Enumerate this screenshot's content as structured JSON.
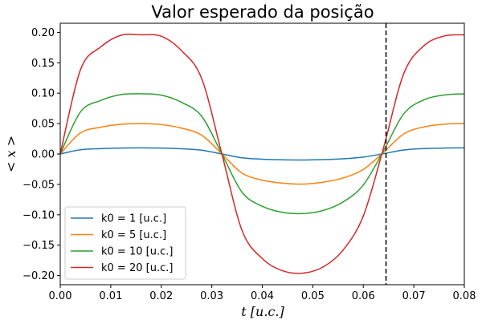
{
  "chart_data": {
    "type": "line",
    "title": "Valor esperado da posição",
    "xlabel": "t [u.c.]",
    "ylabel": "< x >",
    "xlim": [
      0.0,
      0.08
    ],
    "ylim": [
      -0.215,
      0.215
    ],
    "xticks": [
      0.0,
      0.01,
      0.02,
      0.03,
      0.04,
      0.05,
      0.06,
      0.07,
      0.08
    ],
    "xtick_labels": [
      "0.00",
      "0.01",
      "0.02",
      "0.03",
      "0.04",
      "0.05",
      "0.06",
      "0.07",
      "0.08"
    ],
    "yticks": [
      0.2,
      0.15,
      0.1,
      0.05,
      0.0,
      -0.05,
      -0.1,
      -0.15,
      -0.2
    ],
    "ytick_labels": [
      "0.20",
      "0.15",
      "0.10",
      "0.05",
      "0.00",
      "−0.05",
      "−0.10",
      "−0.15",
      "−0.20"
    ],
    "grid": false,
    "legend_position": "lower-left",
    "vline": {
      "x": 0.0645,
      "style": "dashed",
      "color": "#000000"
    },
    "x": [
      0.0,
      0.004,
      0.008,
      0.012,
      0.016,
      0.02,
      0.024,
      0.028,
      0.032,
      0.036,
      0.04,
      0.044,
      0.048,
      0.052,
      0.056,
      0.06,
      0.064,
      0.068,
      0.072,
      0.076,
      0.08
    ],
    "series": [
      {
        "name": "k0 = 1 [u.c.]",
        "color": "#1f77b4",
        "values": [
          0.0,
          0.0069,
          0.0088,
          0.0098,
          0.01,
          0.0097,
          0.0085,
          0.0062,
          0.0,
          -0.0063,
          -0.0086,
          -0.0096,
          -0.0099,
          -0.0093,
          -0.0079,
          -0.0051,
          0.0005,
          0.0066,
          0.0089,
          0.0098,
          0.01
        ]
      },
      {
        "name": "k0 = 5 [u.c.]",
        "color": "#ff7f0e",
        "values": [
          0.0,
          0.0346,
          0.044,
          0.0488,
          0.05,
          0.0484,
          0.0425,
          0.031,
          0.0,
          -0.0315,
          -0.043,
          -0.048,
          -0.0495,
          -0.0465,
          -0.0395,
          -0.0255,
          0.0025,
          0.033,
          0.0445,
          0.049,
          0.05
        ]
      },
      {
        "name": "k0 = 10 [u.c.]",
        "color": "#2ca02c",
        "values": [
          0.0,
          0.0692,
          0.088,
          0.0976,
          0.099,
          0.0968,
          0.085,
          0.062,
          0.0,
          -0.063,
          -0.086,
          -0.096,
          -0.098,
          -0.093,
          -0.079,
          -0.051,
          0.005,
          0.066,
          0.089,
          0.097,
          0.099
        ]
      },
      {
        "name": "k0 = 20 [u.c.]",
        "color": "#d62728",
        "values": [
          0.0,
          0.1384,
          0.176,
          0.1952,
          0.196,
          0.1936,
          0.17,
          0.124,
          0.0,
          -0.126,
          -0.172,
          -0.192,
          -0.196,
          -0.186,
          -0.158,
          -0.102,
          0.01,
          0.132,
          0.178,
          0.194,
          0.196
        ]
      }
    ]
  }
}
